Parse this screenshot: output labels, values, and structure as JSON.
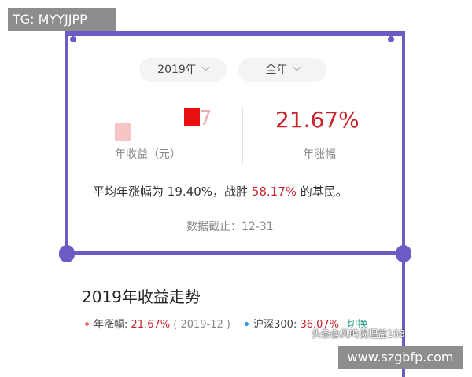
{
  "overlay_tag": "TG: MYYJJPP",
  "filters": {
    "year": "2019年",
    "period": "全年"
  },
  "summary": {
    "income_partial": "7",
    "income_label": "年收益（元）",
    "return_value": "21.67%",
    "return_label": "年涨幅"
  },
  "sentence": {
    "prefix": "平均年涨幅为",
    "average": "19.40%",
    "middle": "，战胜",
    "beat": "58.17%",
    "suffix": "的基民。"
  },
  "cutoff": "数据截止：12-31",
  "trend": {
    "title": "2019年收益走势",
    "legend": {
      "fund_label": "年涨幅:",
      "fund_value": "21.67%",
      "fund_date": "( 2019-12 )",
      "index_label": "沪深300:",
      "index_value": "36.07%",
      "switch": "切换"
    }
  },
  "watermark": "头条@风鸣说理益168",
  "site_tag": "www.szgbfp.com"
}
